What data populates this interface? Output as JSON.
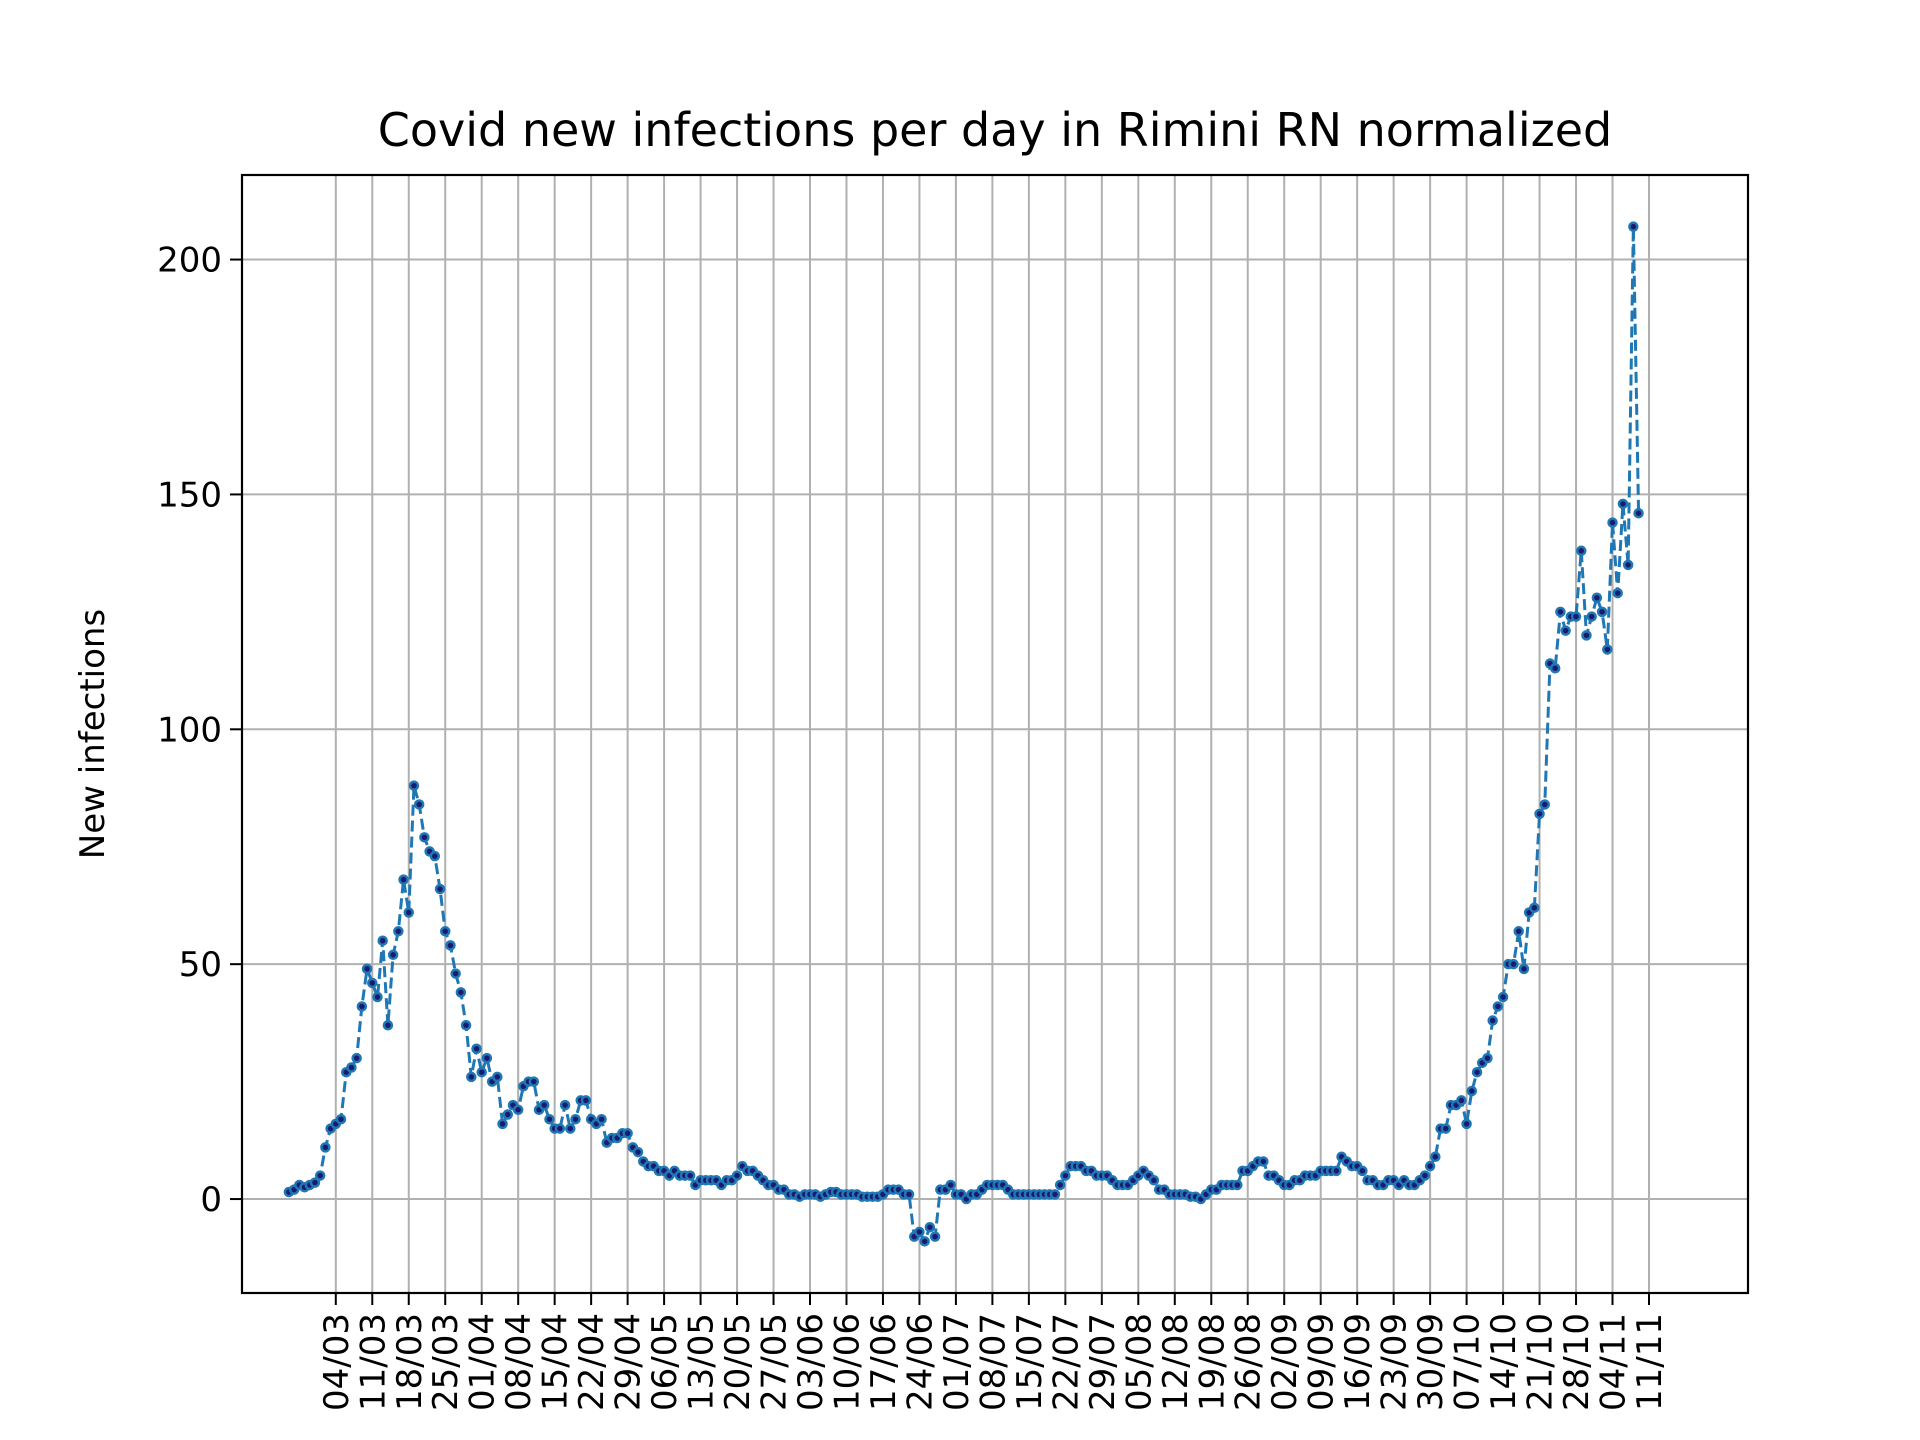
{
  "chart_data": {
    "type": "line",
    "title": "Covid new infections per day in Rimini RN normalized",
    "xlabel": "",
    "ylabel": "New infections",
    "ylim": [
      -20,
      218
    ],
    "yticks": [
      0,
      50,
      100,
      150,
      200
    ],
    "grid": true,
    "legend": "none",
    "line_style": "dashed",
    "marker": "dot",
    "colors": {
      "line": "#1f77b4",
      "marker_edge": "#1f77b4",
      "marker_face": "#1a1a6e",
      "grid": "#b0b0b0"
    },
    "x_start": "2020-02-24",
    "x_end": "2020-11-12",
    "xticks": [
      "2020-03-04",
      "2020-03-11",
      "2020-03-18",
      "2020-03-25",
      "2020-04-01",
      "2020-04-08",
      "2020-04-15",
      "2020-04-22",
      "2020-04-29",
      "2020-05-06",
      "2020-05-13",
      "2020-05-20",
      "2020-05-27",
      "2020-06-03",
      "2020-06-10",
      "2020-06-17",
      "2020-06-24",
      "2020-07-01",
      "2020-07-08",
      "2020-07-15",
      "2020-07-22",
      "2020-07-29",
      "2020-08-05",
      "2020-08-12",
      "2020-08-19",
      "2020-08-26",
      "2020-09-02",
      "2020-09-09",
      "2020-09-16",
      "2020-09-23",
      "2020-09-30",
      "2020-10-07",
      "2020-10-14",
      "2020-10-21",
      "2020-10-28",
      "2020-11-04",
      "2020-11-11"
    ],
    "xtick_labels": [
      "04/03",
      "11/03",
      "18/03",
      "25/03",
      "01/04",
      "08/04",
      "15/04",
      "22/04",
      "29/04",
      "06/05",
      "13/05",
      "20/05",
      "27/05",
      "03/06",
      "10/06",
      "17/06",
      "24/06",
      "01/07",
      "08/07",
      "15/07",
      "22/07",
      "29/07",
      "05/08",
      "12/08",
      "19/08",
      "26/08",
      "02/09",
      "09/09",
      "16/09",
      "23/09",
      "30/09",
      "07/10",
      "14/10",
      "21/10",
      "28/10",
      "04/11",
      "11/11"
    ],
    "y": [
      1.5,
      2,
      3,
      2.5,
      3,
      3.5,
      5,
      11,
      15,
      16,
      17,
      27,
      28,
      30,
      41,
      49,
      46,
      43,
      55,
      37,
      52,
      57,
      68,
      61,
      88,
      84,
      77,
      74,
      73,
      66,
      57,
      54,
      48,
      44,
      37,
      26,
      32,
      27,
      30,
      25,
      26,
      16,
      18,
      20,
      19,
      24,
      25,
      25,
      19,
      20,
      17,
      15,
      15,
      20,
      15,
      17,
      21,
      21,
      17,
      16,
      17,
      12,
      13,
      13,
      14,
      14,
      11,
      10,
      8,
      7,
      7,
      6,
      6,
      5,
      6,
      5,
      5,
      5,
      3,
      4,
      4,
      4,
      4,
      3,
      4,
      4,
      5,
      7,
      6,
      6,
      5,
      4,
      3,
      3,
      2,
      2,
      1,
      1,
      0.5,
      1,
      1,
      1,
      0.5,
      1,
      1.5,
      1.5,
      1,
      1,
      1,
      1,
      0.5,
      0.5,
      0.5,
      0.5,
      1,
      2,
      2,
      2,
      1,
      1,
      -8,
      -7,
      -9,
      -6,
      -8,
      2,
      2,
      3,
      1,
      1,
      0,
      1,
      1,
      2,
      3,
      3,
      3,
      3,
      2,
      1,
      1,
      1,
      1,
      1,
      1,
      1,
      1,
      1,
      3,
      5,
      7,
      7,
      7,
      6,
      6,
      5,
      5,
      5,
      4,
      3,
      3,
      3,
      4,
      5,
      6,
      5,
      4,
      2,
      2,
      1,
      1,
      1,
      1,
      0.5,
      0.5,
      0,
      1,
      2,
      2,
      3,
      3,
      3,
      3,
      6,
      6,
      7,
      8,
      8,
      5,
      5,
      4,
      3,
      3,
      4,
      4,
      5,
      5,
      5,
      6,
      6,
      6,
      6,
      9,
      8,
      7,
      7,
      6,
      4,
      4,
      3,
      3,
      4,
      4,
      3,
      4,
      3,
      3,
      4,
      5,
      7,
      9,
      15,
      15,
      20,
      20,
      21,
      16,
      23,
      27,
      29,
      30,
      38,
      41,
      43,
      50,
      50,
      57,
      49,
      61,
      62,
      82,
      84,
      114,
      113,
      125,
      121,
      124,
      124,
      138,
      120,
      124,
      128,
      125,
      117,
      144,
      129,
      148,
      135,
      207,
      146
    ]
  }
}
